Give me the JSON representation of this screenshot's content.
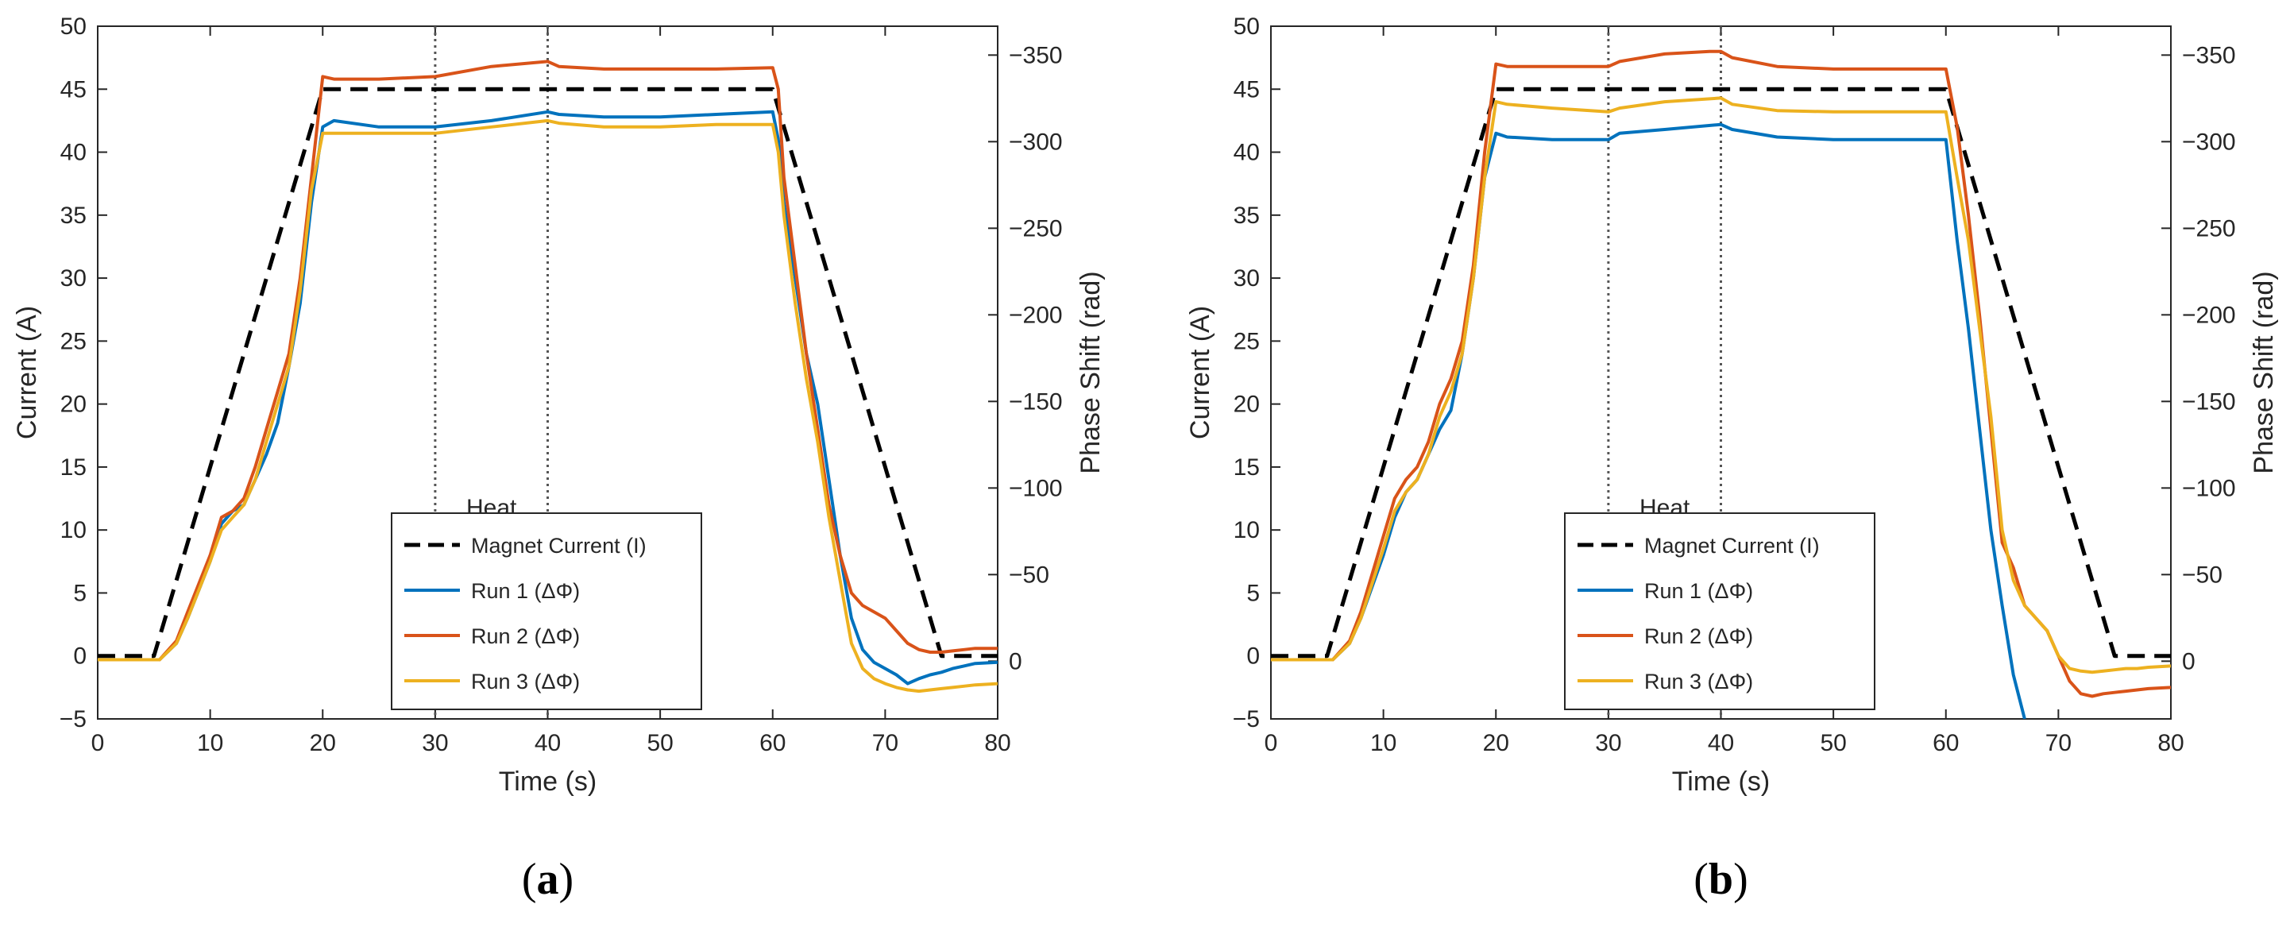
{
  "chart_data": [
    {
      "type": "line",
      "panel_label": "(a)",
      "panel_label_bold": "a",
      "xlabel": "Time (s)",
      "ylabel": "Current (A)",
      "y2label": "Phase Shift (rad)",
      "xlim": [
        0,
        80
      ],
      "ylim": [
        -5,
        50
      ],
      "y2lim": [
        33.33,
        -366.67
      ],
      "xticks": [
        "0",
        "10",
        "20",
        "30",
        "40",
        "50",
        "60",
        "70",
        "80"
      ],
      "yticks": [
        "-5",
        "0",
        "5",
        "10",
        "15",
        "20",
        "25",
        "30",
        "35",
        "40",
        "45",
        "50"
      ],
      "y2ticks": [
        "0",
        "−50",
        "−100",
        "−150",
        "−200",
        "−250",
        "−300",
        "−350"
      ],
      "grid": false,
      "annotation": {
        "text": "Heat",
        "x_from": 30,
        "x_to": 40,
        "y": 9.5
      },
      "vlines": [
        30,
        40
      ],
      "legend_placement": "lower-center",
      "legend": [
        "Magnet Current (I)",
        "Run 1 (ΔΦ)",
        "Run 2 (ΔΦ)",
        "Run 3 (ΔΦ)"
      ],
      "series": [
        {
          "name": "Magnet Current (I)",
          "color": "#000000",
          "dash": true,
          "x": [
            0,
            5,
            20,
            60,
            75,
            80
          ],
          "y": [
            0,
            0,
            45,
            45,
            0,
            0
          ]
        },
        {
          "name": "Run 1 (ΔΦ)",
          "color": "#0072BD",
          "x": [
            0,
            4,
            5.5,
            7,
            8,
            10,
            11,
            12,
            13,
            14,
            15,
            16,
            17,
            18,
            19,
            20,
            21,
            25,
            30,
            35,
            40,
            41,
            45,
            50,
            55,
            60,
            60.5,
            61,
            62,
            63,
            64,
            65,
            66,
            67,
            68,
            69,
            70,
            71,
            72,
            73,
            74,
            75,
            76,
            77,
            78,
            80
          ],
          "y": [
            -0.3,
            -0.3,
            -0.3,
            1,
            3,
            7.5,
            10.5,
            11.5,
            12,
            14,
            16,
            18.5,
            23,
            28,
            36,
            42,
            42.5,
            42,
            42,
            42.5,
            43.2,
            43,
            42.8,
            42.8,
            43,
            43.2,
            41,
            36,
            30,
            24,
            20,
            14,
            8,
            3,
            0.5,
            -0.5,
            -1,
            -1.5,
            -2.2,
            -1.8,
            -1.5,
            -1.3,
            -1,
            -0.8,
            -0.6,
            -0.5
          ]
        },
        {
          "name": "Run 2 (ΔΦ)",
          "color": "#D95319",
          "x": [
            0,
            4,
            5.5,
            7,
            8,
            10,
            11,
            12,
            13,
            14,
            15,
            16,
            17,
            18,
            19,
            20,
            21,
            25,
            30,
            35,
            40,
            41,
            45,
            50,
            55,
            60,
            60.5,
            61,
            62,
            63,
            64,
            65,
            66,
            67,
            68,
            69,
            70,
            71,
            72,
            73,
            74,
            75,
            76,
            77,
            78,
            80
          ],
          "y": [
            -0.3,
            -0.3,
            -0.3,
            1.2,
            3.5,
            8,
            11,
            11.5,
            12.5,
            15,
            18,
            21,
            24,
            30,
            38,
            46,
            45.8,
            45.8,
            46,
            46.8,
            47.2,
            46.8,
            46.6,
            46.6,
            46.6,
            46.7,
            45,
            38,
            31,
            24,
            18,
            12,
            8,
            5,
            4,
            3.5,
            3,
            2,
            1,
            0.5,
            0.3,
            0.3,
            0.4,
            0.5,
            0.6,
            0.6
          ]
        },
        {
          "name": "Run 3 (ΔΦ)",
          "color": "#EDB120",
          "x": [
            0,
            4,
            5.5,
            7,
            8,
            10,
            11,
            12,
            13,
            14,
            15,
            16,
            17,
            18,
            19,
            20,
            21,
            25,
            30,
            35,
            40,
            41,
            45,
            50,
            55,
            60,
            60.5,
            61,
            62,
            63,
            64,
            65,
            66,
            67,
            68,
            69,
            70,
            71,
            72,
            73,
            74,
            75,
            76,
            77,
            78,
            80
          ],
          "y": [
            -0.3,
            -0.3,
            -0.3,
            1,
            3,
            7.5,
            10,
            11,
            12,
            14,
            17,
            20,
            23,
            29,
            37,
            41.5,
            41.5,
            41.5,
            41.5,
            42,
            42.5,
            42.3,
            42,
            42,
            42.2,
            42.2,
            40,
            35,
            28,
            22,
            17,
            11,
            6,
            1,
            -1,
            -1.8,
            -2.2,
            -2.5,
            -2.7,
            -2.8,
            -2.7,
            -2.6,
            -2.5,
            -2.4,
            -2.3,
            -2.2
          ]
        }
      ]
    },
    {
      "type": "line",
      "panel_label": "(b)",
      "panel_label_bold": "b",
      "xlabel": "Time (s)",
      "ylabel": "Current (A)",
      "y2label": "Phase Shift (rad)",
      "xlim": [
        0,
        80
      ],
      "ylim": [
        -5,
        50
      ],
      "y2lim": [
        33.33,
        -366.67
      ],
      "xticks": [
        "0",
        "10",
        "20",
        "30",
        "40",
        "50",
        "60",
        "70",
        "80"
      ],
      "yticks": [
        "-5",
        "0",
        "5",
        "10",
        "15",
        "20",
        "25",
        "30",
        "35",
        "40",
        "45",
        "50"
      ],
      "y2ticks": [
        "0",
        "−50",
        "−100",
        "−150",
        "−200",
        "−250",
        "−300",
        "−350"
      ],
      "grid": false,
      "annotation": {
        "text": "Heat",
        "x_from": 30,
        "x_to": 40,
        "y": 9.5
      },
      "vlines": [
        30,
        40
      ],
      "legend_placement": "lower-center",
      "legend": [
        "Magnet Current (I)",
        "Run 1 (ΔΦ)",
        "Run 2 (ΔΦ)",
        "Run 3 (ΔΦ)"
      ],
      "series": [
        {
          "name": "Magnet Current (I)",
          "color": "#000000",
          "dash": true,
          "x": [
            0,
            5,
            20,
            60,
            75,
            80
          ],
          "y": [
            0,
            0,
            45,
            45,
            0,
            0
          ]
        },
        {
          "name": "Run 1 (ΔΦ)",
          "color": "#0072BD",
          "x": [
            0,
            4,
            5.5,
            7,
            8,
            10,
            11,
            12,
            13,
            14,
            15,
            16,
            17,
            18,
            19,
            20,
            21,
            25,
            30,
            31,
            35,
            40,
            41,
            45,
            50,
            55,
            60,
            61,
            62,
            63,
            64,
            65,
            66,
            67
          ],
          "y": [
            -0.3,
            -0.3,
            -0.3,
            1,
            3,
            8,
            11,
            13,
            14,
            16,
            18,
            19.5,
            24,
            30,
            38,
            41.5,
            41.2,
            41,
            41,
            41.5,
            41.8,
            42.2,
            41.8,
            41.2,
            41,
            41,
            41,
            33,
            26,
            18,
            10,
            4,
            -1.5,
            -5
          ]
        },
        {
          "name": "Run 2 (ΔΦ)",
          "color": "#D95319",
          "x": [
            0,
            4,
            5.5,
            7,
            8,
            10,
            11,
            12,
            13,
            14,
            15,
            16,
            17,
            18,
            19,
            20,
            21,
            25,
            30,
            31,
            35,
            39,
            40,
            41,
            45,
            50,
            55,
            60,
            61,
            62,
            63,
            64,
            65,
            66,
            67,
            68,
            69,
            70,
            71,
            72,
            73,
            74,
            75,
            76,
            77,
            78,
            80
          ],
          "y": [
            -0.3,
            -0.3,
            -0.3,
            1.2,
            3.5,
            9.5,
            12.5,
            14,
            15,
            17,
            20,
            22,
            25,
            31,
            40,
            47,
            46.8,
            46.8,
            46.8,
            47.2,
            47.8,
            48,
            48,
            47.5,
            46.8,
            46.6,
            46.6,
            46.6,
            42,
            35,
            27,
            18,
            9,
            7,
            4,
            3,
            2,
            0,
            -2,
            -3,
            -3.2,
            -3,
            -2.9,
            -2.8,
            -2.7,
            -2.6,
            -2.5
          ]
        },
        {
          "name": "Run 3 (ΔΦ)",
          "color": "#EDB120",
          "x": [
            0,
            4,
            5.5,
            7,
            8,
            10,
            11,
            12,
            13,
            14,
            15,
            16,
            17,
            18,
            19,
            20,
            21,
            25,
            30,
            31,
            35,
            40,
            41,
            45,
            50,
            55,
            60,
            61,
            62,
            63,
            64,
            65,
            66,
            67,
            68,
            69,
            70,
            71,
            72,
            73,
            74,
            75,
            76,
            77,
            78,
            80
          ],
          "y": [
            -0.3,
            -0.3,
            -0.3,
            1,
            3,
            8.5,
            11.5,
            13,
            14,
            16,
            19,
            21,
            24,
            30,
            38,
            44,
            43.8,
            43.5,
            43.2,
            43.5,
            44,
            44.3,
            43.8,
            43.3,
            43.2,
            43.2,
            43.2,
            38,
            33,
            26,
            19,
            10,
            6,
            4,
            3,
            2,
            0,
            -1,
            -1.2,
            -1.3,
            -1.2,
            -1.1,
            -1,
            -1,
            -0.9,
            -0.8
          ]
        }
      ]
    }
  ]
}
